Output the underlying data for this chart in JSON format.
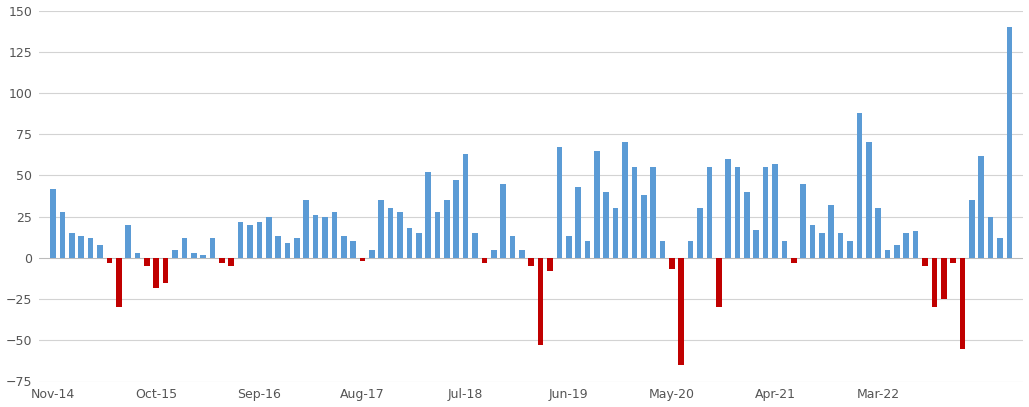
{
  "values": [
    42,
    28,
    15,
    13,
    12,
    8,
    -3,
    -30,
    20,
    3,
    -5,
    -18,
    -15,
    5,
    12,
    3,
    2,
    12,
    -3,
    -5,
    22,
    20,
    22,
    25,
    13,
    9,
    12,
    35,
    26,
    25,
    28,
    13,
    10,
    -2,
    5,
    35,
    30,
    28,
    18,
    15,
    52,
    28,
    35,
    47,
    63,
    15,
    -3,
    5,
    45,
    13,
    5,
    -5,
    -53,
    -8,
    67,
    13,
    43,
    10,
    65,
    40,
    30,
    70,
    55,
    38,
    55,
    10,
    -7,
    -65,
    10,
    30,
    55,
    -30,
    60,
    55,
    40,
    17,
    55,
    57,
    10,
    -3,
    45,
    20,
    15,
    32,
    15,
    10,
    88,
    70,
    30,
    5,
    8,
    15,
    16,
    -5,
    -30,
    -25,
    -3,
    -55,
    35,
    62,
    25,
    12,
    140
  ],
  "xtick_labels": [
    "Nov-14",
    "Oct-15",
    "Sep-16",
    "Aug-17",
    "Jul-18",
    "Jun-19",
    "May-20",
    "Apr-21",
    "Mar-22"
  ],
  "xtick_positions": [
    0,
    11,
    22,
    33,
    44,
    55,
    66,
    77,
    88
  ],
  "positive_color": "#5B9BD5",
  "negative_color": "#C00000",
  "background_color": "#FFFFFF",
  "grid_color": "#D3D3D3",
  "ylim": [
    -75,
    150
  ],
  "yticks": [
    -75,
    -50,
    -25,
    0,
    25,
    50,
    75,
    100,
    125,
    150
  ]
}
